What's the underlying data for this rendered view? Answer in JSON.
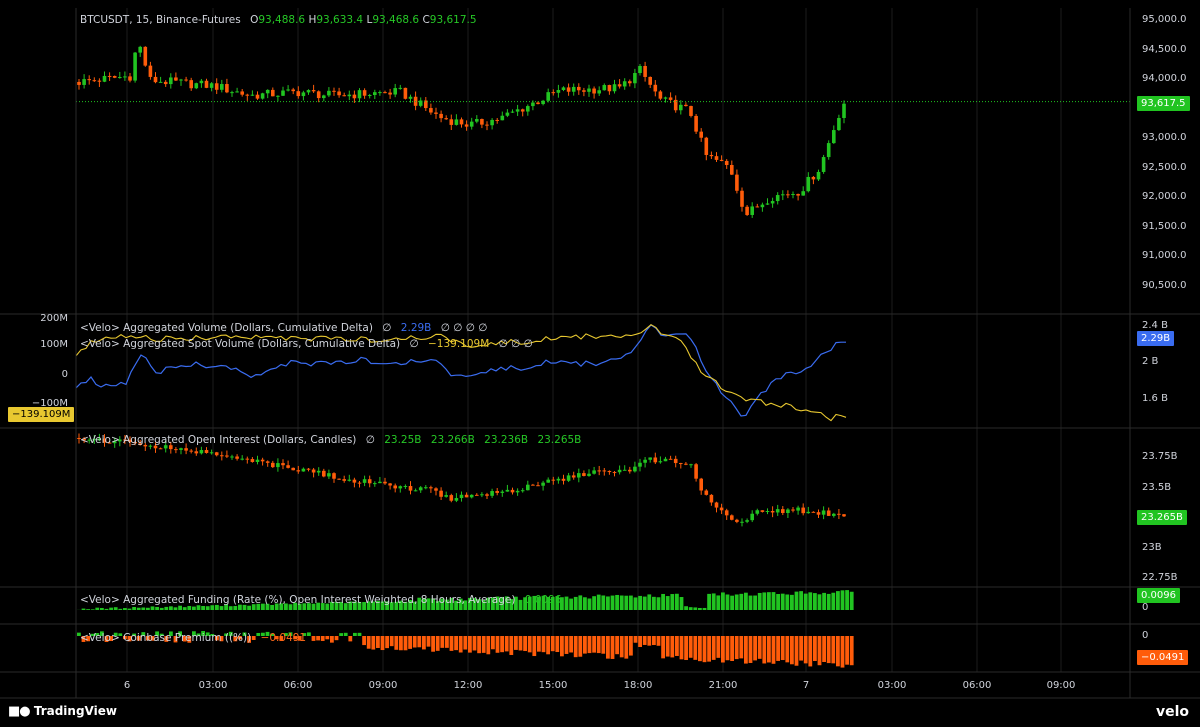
{
  "colors": {
    "up": "#21c421",
    "down": "#ff5c0a",
    "delta": "#3a6cf0",
    "spot": "#e8c830",
    "grid": "#2a2a2a",
    "bg": "#000000"
  },
  "price_pane": {
    "symbol": "BTCUSDT",
    "interval": "15",
    "exchange": "Binance-Futures",
    "o_label": "O",
    "o": "93,488.6",
    "h_label": "H",
    "h": "93,633.4",
    "l_label": "L",
    "l": "93,468.6",
    "c_label": "C",
    "c": "93,617.5",
    "last_price": "93,617.5",
    "axis_ticks": [
      "95,000.0",
      "94,500.0",
      "94,000.0",
      "93,000.0",
      "92,500.0",
      "92,000.0",
      "91,500.0",
      "91,000.0",
      "90,500.0"
    ]
  },
  "volume_pane": {
    "line1_name": "<Velo> Aggregated Volume (Dollars, Cumulative Delta)",
    "line1_value": "2.29B",
    "line2_name": "<Velo> Aggregated Spot Volume (Dollars, Cumulative Delta)",
    "line2_value": "−139.109M",
    "placeholder": "∅",
    "right_ticks": [
      "2.4 B",
      "2 B",
      "1.6 B"
    ],
    "right_tag": "2.29B",
    "left_ticks": [
      "200M",
      "100M",
      "0",
      "−100M"
    ],
    "left_tag": "−139.109M"
  },
  "oi_pane": {
    "name": "<Velo> Aggregated Open Interest (Dollars, Candles)",
    "values": [
      "23.25B",
      "23.266B",
      "23.236B",
      "23.265B"
    ],
    "axis_ticks": [
      "23.75B",
      "23.5B",
      "23B",
      "22.75B"
    ],
    "last": "23.265B"
  },
  "funding_pane": {
    "name": "<Velo> Aggregated Funding (Rate (%), Open Interest Weighted, 8 Hours, Average)",
    "value": "0.0096",
    "axis_ticks": [
      "0"
    ],
    "last": "0.0096"
  },
  "premium_pane": {
    "name": "<Velo> Coinbase Premium ((%))",
    "value": "−0.0491",
    "axis_ticks": [
      "0"
    ],
    "last": "−0.0491"
  },
  "time_axis": [
    "6",
    "03:00",
    "06:00",
    "09:00",
    "12:00",
    "15:00",
    "18:00",
    "21:00",
    "7",
    "03:00",
    "06:00",
    "09:00"
  ],
  "footer": {
    "left": "TradingView",
    "right": "velo"
  },
  "chart_data": [
    {
      "type": "candlestick",
      "title": "BTCUSDT, 15, Binance-Futures",
      "ylim": [
        90000,
        95300
      ],
      "x": [
        "6 02:00",
        "6 06:00",
        "6 10:00",
        "6 12:00",
        "6 15:00",
        "6 18:00",
        "6 19:00",
        "6 20:00",
        "6 21:00",
        "6 22:00",
        "7 00:00"
      ],
      "close_keypoints": [
        93950,
        94200,
        93800,
        93300,
        93700,
        93900,
        94200,
        93500,
        92500,
        91800,
        93617.5
      ],
      "high": 94750,
      "low": 91200
    },
    {
      "type": "line",
      "series": [
        {
          "name": "Aggregated Volume (Dollars, Cumulative Delta)",
          "values_B": [
            1.92,
            1.93,
            1.88,
            1.95,
            2.12,
            2.0,
            2.02,
            2.01,
            1.96,
            2.02,
            1.98,
            2.05,
            2.04,
            1.9,
            1.96,
            1.95,
            2.0,
            2.02,
            2.05,
            2.05,
            2.05,
            2.43,
            2.35,
            2.0,
            1.6,
            1.9,
            1.95,
            2.05,
            2.29
          ]
        },
        {
          "name": "Aggregated Spot Volume (Dollars, Cumulative Delta)",
          "values_M": [
            110,
            130,
            130,
            128,
            133,
            132,
            132,
            130,
            135,
            138,
            125,
            128,
            130,
            132,
            135,
            130,
            128,
            133,
            130,
            135,
            145,
            175,
            165,
            60,
            -50,
            -80,
            -105,
            -130,
            -139.109
          ]
        }
      ]
    },
    {
      "type": "candlestick",
      "title": "Aggregated Open Interest",
      "ylim": [
        22.7,
        23.95
      ],
      "last": 23.265
    },
    {
      "type": "bar",
      "title": "Aggregated Funding",
      "last": 0.0096
    },
    {
      "type": "bar",
      "title": "Coinbase Premium",
      "last": -0.0491
    }
  ]
}
